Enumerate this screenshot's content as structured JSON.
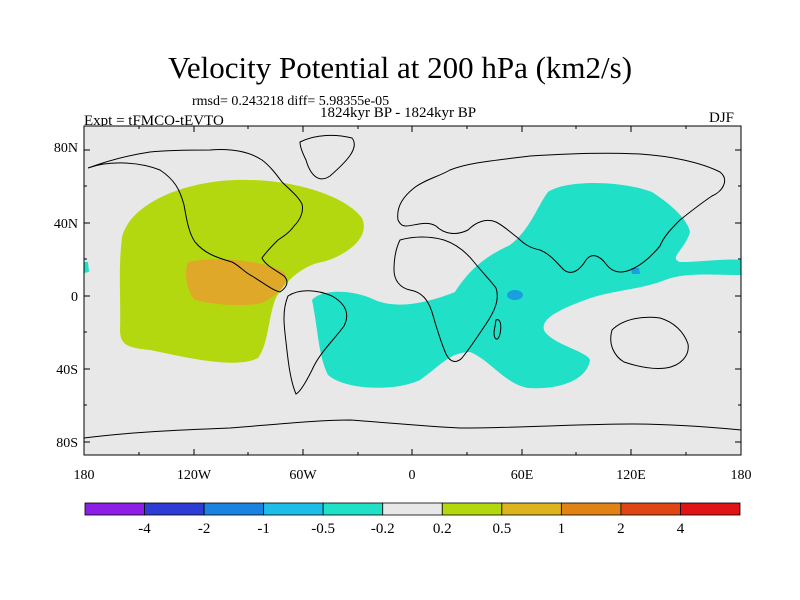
{
  "title": "Velocity Potential at 200 hPa (km2/s)",
  "stats": "rmsd= 0.243218 diff= 5.98355e-05",
  "period": "1824kyr BP - 1824kyr BP",
  "experiment": "Expt = tFMCO-tEVTO",
  "season": "DJF",
  "map": {
    "projection": "cylindrical equidistant",
    "lat_ticks": [
      "80N",
      "40N",
      "0",
      "40S",
      "80S"
    ],
    "lon_ticks": [
      "180",
      "120W",
      "60W",
      "0",
      "60E",
      "120E",
      "180"
    ]
  },
  "colorbar": {
    "labels": [
      "-4",
      "-2",
      "-1",
      "-0.5",
      "-0.2",
      "0.2",
      "0.5",
      "1",
      "2",
      "4"
    ],
    "colors": [
      "#8c1ee6",
      "#2e3cd6",
      "#1a82e0",
      "#1cbde8",
      "#20e0c8",
      "#e8e8e8",
      "#b4d80f",
      "#dcb41e",
      "#e08214",
      "#e04614",
      "#e01414"
    ]
  },
  "colors": {
    "background": "#e8e8e8",
    "positive_weak": "#b4d80f",
    "positive_mid": "#e0a828",
    "negative_weak": "#20e0c8",
    "negative_mid": "#1a9ee0"
  }
}
